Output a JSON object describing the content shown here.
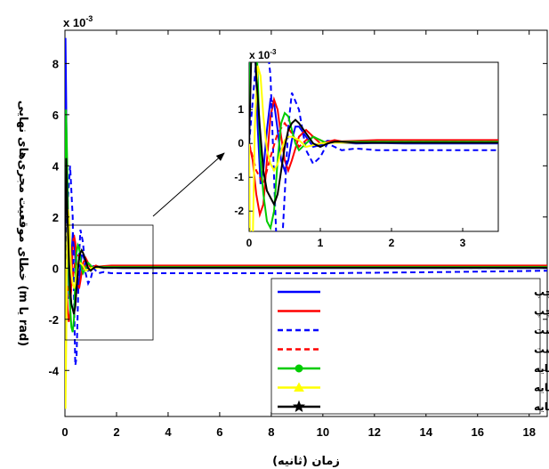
{
  "chart_data": {
    "type": "line",
    "xlabel": "زمان (ثانیه)",
    "ylabel": "خطای موقعیت مجری‌های نهایی (m یا rad)",
    "xlim": [
      0,
      18.7
    ],
    "ylim": [
      -5.8,
      9.3
    ],
    "x_ticks": [
      0,
      2,
      4,
      6,
      8,
      10,
      12,
      14,
      16,
      18
    ],
    "y_ticks": [
      -4,
      -2,
      0,
      2,
      4,
      6,
      8
    ],
    "y_multiplier": "x 10-3",
    "grid": false,
    "legend_position": "bottom-right",
    "series": [
      {
        "name": "خطای موقعیت طولی مجری نهایی چپ",
        "color": "#0000ff",
        "style": "solid",
        "marker": "none",
        "x": [
          0,
          0.02,
          0.05,
          0.08,
          0.12,
          0.16,
          0.2,
          0.25,
          0.3,
          0.35,
          0.4,
          0.45,
          0.5,
          0.55,
          0.6,
          0.65,
          0.7,
          0.8,
          0.9,
          1.0,
          1.1,
          1.2,
          1.3,
          1.5,
          1.8,
          2.2,
          3,
          5,
          10,
          15,
          18.7
        ],
        "y": [
          0,
          9.0,
          6.5,
          3.0,
          0.5,
          -1.2,
          -0.8,
          0.4,
          1.3,
          1.2,
          0.4,
          -0.5,
          -0.8,
          -0.5,
          0.1,
          0.5,
          0.5,
          0.2,
          -0.1,
          -0.05,
          0.08,
          0.06,
          0.02,
          0.0,
          0.01,
          0.0,
          0.0,
          0.0,
          0.0,
          0.0,
          0.0
        ]
      },
      {
        "name": "خطای موقعیت عرضی مجری نهایی چپ",
        "color": "#ff0000",
        "style": "solid",
        "marker": "none",
        "x": [
          0,
          0.05,
          0.1,
          0.15,
          0.2,
          0.25,
          0.3,
          0.35,
          0.4,
          0.45,
          0.5,
          0.55,
          0.6,
          0.7,
          0.8,
          0.9,
          1.0,
          1.1,
          1.2,
          1.3,
          1.5,
          1.8,
          2.2,
          3,
          5,
          10,
          15,
          18.7
        ],
        "y": [
          0,
          -0.5,
          -1.5,
          -2.1,
          -1.8,
          -0.5,
          0.8,
          1.3,
          1.0,
          0.2,
          -0.5,
          -0.8,
          -0.5,
          0.2,
          0.4,
          0.2,
          0.0,
          0.05,
          0.1,
          0.06,
          0.08,
          0.1,
          0.1,
          0.1,
          0.1,
          0.1,
          0.1,
          0.1
        ]
      },
      {
        "name": "خطای موقعیت طولی مجری نهایی راست",
        "color": "#0000ff",
        "style": "dashed",
        "marker": "none",
        "x": [
          0,
          0.1,
          0.2,
          0.3,
          0.35,
          0.4,
          0.45,
          0.5,
          0.55,
          0.6,
          0.7,
          0.8,
          0.9,
          1.0,
          1.1,
          1.2,
          1.3,
          1.5,
          1.8,
          2.2,
          3,
          5,
          10,
          15,
          18.7
        ],
        "y": [
          0,
          2.5,
          4.0,
          2.0,
          -1.0,
          -3.8,
          -3.5,
          -1.5,
          0.5,
          1.5,
          1.0,
          -0.2,
          -0.6,
          -0.4,
          0.0,
          -0.1,
          -0.2,
          -0.15,
          -0.2,
          -0.2,
          -0.2,
          -0.2,
          -0.2,
          -0.15,
          -0.1
        ]
      },
      {
        "name": "خطای موقعیت عرضی مجری نهایی راست",
        "color": "#ff0000",
        "style": "dashed",
        "marker": "none",
        "x": [
          0,
          0.1,
          0.2,
          0.3,
          0.4,
          0.5,
          0.6,
          0.7,
          0.8,
          0.9,
          1.0,
          1.1,
          1.2,
          1.3,
          1.5,
          2.0,
          3,
          5,
          10,
          15,
          18.7
        ],
        "y": [
          0,
          -0.8,
          -1.2,
          -0.4,
          0.3,
          0.6,
          0.3,
          -0.1,
          0.1,
          0.2,
          0.1,
          0.0,
          0.05,
          0.05,
          0.05,
          0.05,
          0.05,
          0.05,
          0.05,
          0.05,
          0.05
        ]
      },
      {
        "name": "خطای موقعیت طولی پایه",
        "color": "#00cc00",
        "style": "solid",
        "marker": "circle",
        "x": [
          0,
          0.04,
          0.08,
          0.12,
          0.16,
          0.2,
          0.25,
          0.3,
          0.35,
          0.4,
          0.45,
          0.5,
          0.55,
          0.6,
          0.65,
          0.7,
          0.8,
          0.9,
          1.0,
          1.1,
          1.2,
          1.3,
          1.5,
          1.8,
          2.2,
          3,
          5,
          10,
          15,
          18.7
        ],
        "y": [
          0,
          6.2,
          4.5,
          2.0,
          -0.5,
          -1.5,
          -2.3,
          -2.5,
          -2.0,
          -0.5,
          0.6,
          0.9,
          0.8,
          0.4,
          0.0,
          -0.2,
          0.0,
          0.2,
          0.1,
          0.0,
          0.05,
          0.05,
          0.05,
          0.05,
          0.05,
          0.05,
          0.05,
          0.05,
          0.05,
          0.05
        ]
      },
      {
        "name": "خطای موقعیت عرضی پایه",
        "color": "#ffff00",
        "style": "solid",
        "marker": "triangle",
        "x": [
          0,
          0.02,
          0.05,
          0.08,
          0.12,
          0.16,
          0.2,
          0.25,
          0.3,
          0.35,
          0.4,
          0.45,
          0.5,
          0.55,
          0.6,
          0.7,
          0.8,
          0.9,
          1.0,
          1.1,
          1.2,
          1.5,
          2.0,
          3,
          5,
          10,
          15,
          18.7
        ],
        "y": [
          0,
          -5.5,
          -3.0,
          0.5,
          2.3,
          2.0,
          0.8,
          -0.2,
          -0.6,
          -0.8,
          -0.6,
          -0.2,
          0.1,
          0.2,
          0.2,
          0.1,
          -0.1,
          -0.05,
          0.0,
          0.02,
          0.02,
          0.02,
          0.02,
          0.02,
          0.02,
          0.02,
          0.02,
          0.02
        ]
      },
      {
        "name": "خطای جهت گیری پایه",
        "color": "#000000",
        "style": "solid",
        "marker": "star",
        "x": [
          0,
          0.05,
          0.1,
          0.15,
          0.2,
          0.25,
          0.3,
          0.35,
          0.4,
          0.45,
          0.5,
          0.55,
          0.6,
          0.65,
          0.7,
          0.8,
          0.9,
          1.0,
          1.1,
          1.2,
          1.3,
          1.5,
          1.8,
          2.2,
          3,
          5,
          10,
          15,
          18.7
        ],
        "y": [
          0,
          4.3,
          2.0,
          0.5,
          -0.8,
          -1.4,
          -1.6,
          -1.8,
          -1.5,
          -0.8,
          -0.1,
          0.4,
          0.6,
          0.7,
          0.6,
          0.3,
          0.0,
          -0.1,
          0.0,
          0.05,
          0.05,
          0.02,
          0.02,
          0.02,
          0.02,
          0.02,
          0.02,
          0.02,
          0.02
        ]
      }
    ],
    "inset": {
      "xlim": [
        0,
        3.5
      ],
      "ylim": [
        -2.6,
        2.4
      ],
      "x_ticks": [
        0,
        1,
        2,
        3
      ],
      "y_ticks": [
        -2,
        -1,
        0,
        1
      ],
      "y_multiplier": "x 10-3"
    }
  },
  "labels": {
    "multiplier_base": "x 10",
    "multiplier_exp": "-3"
  }
}
